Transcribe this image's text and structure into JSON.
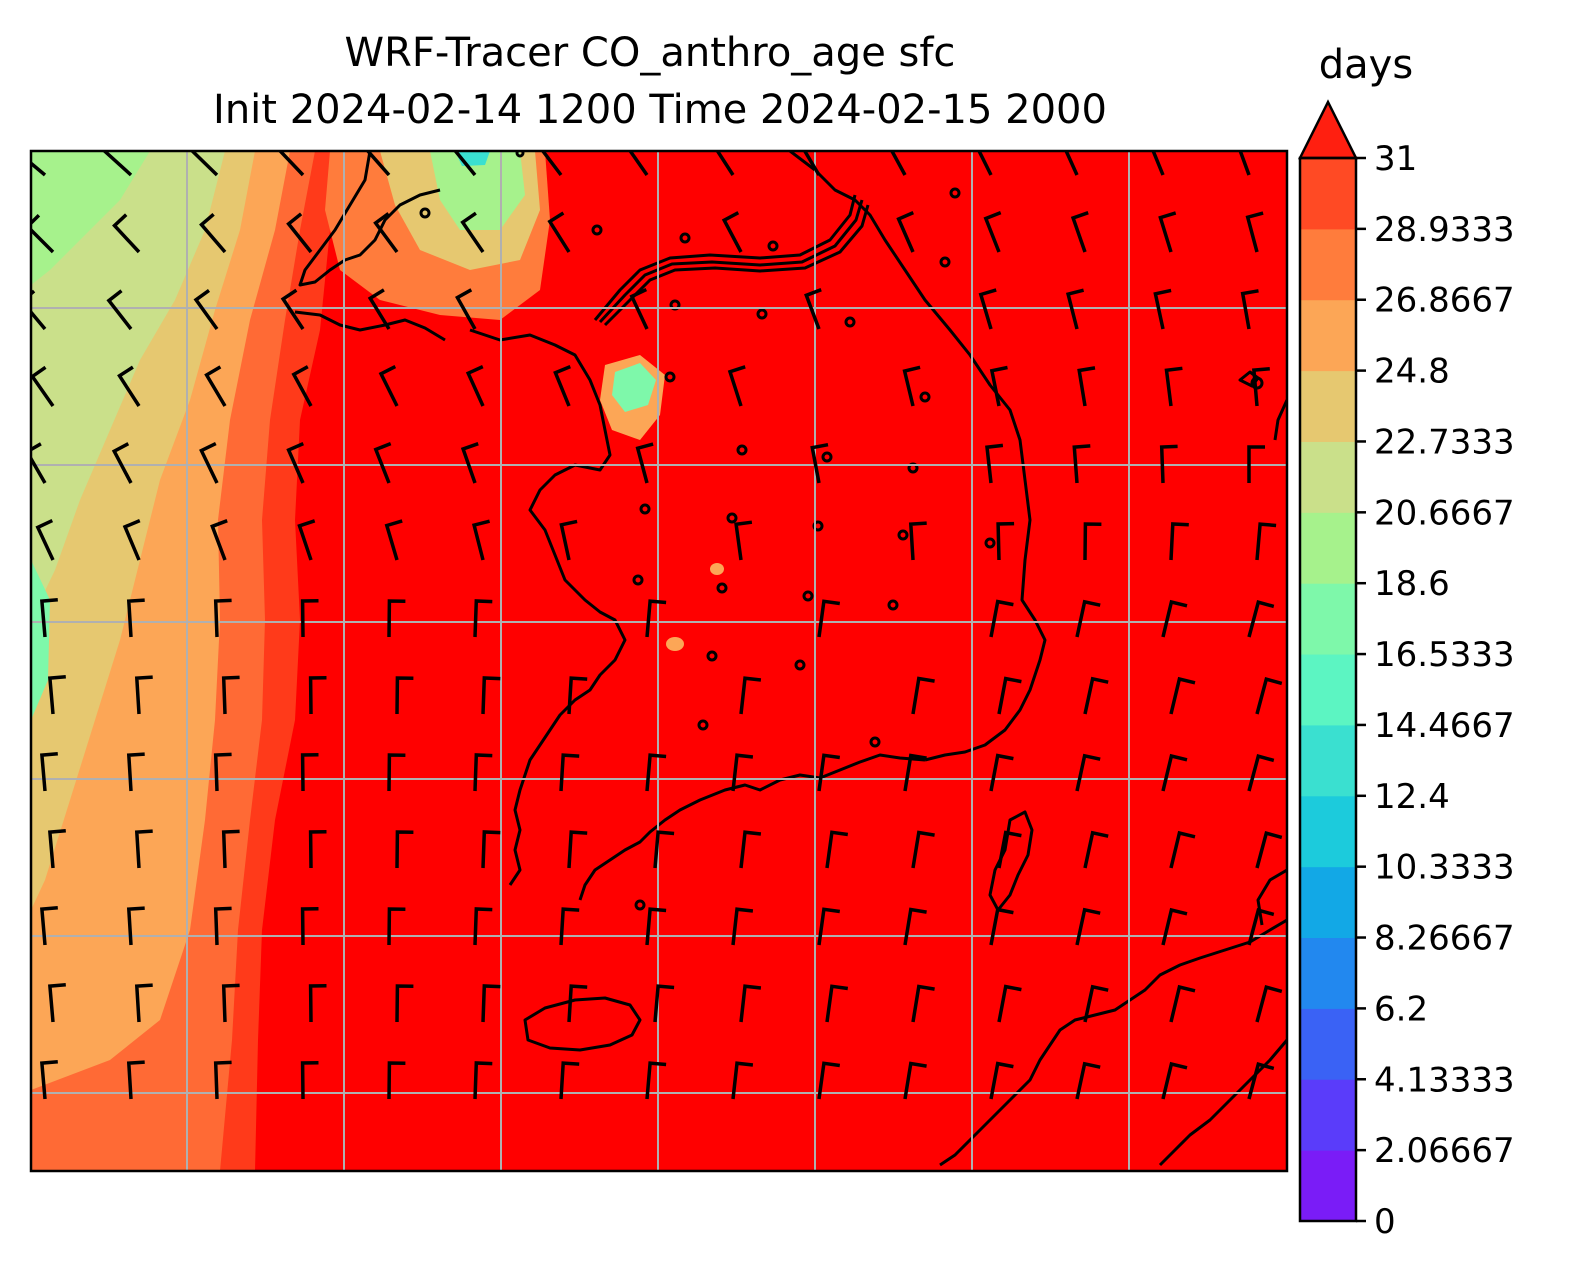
{
  "title": {
    "line1": "WRF-Tracer CO_anthro_age sfc",
    "line2": "Init 2024-02-14 1200 Time 2024-02-15 2000"
  },
  "colorbar": {
    "units": "days",
    "extend": "max",
    "ticks": [
      "0",
      "2.06667",
      "4.13333",
      "6.2",
      "8.26667",
      "10.3333",
      "12.4",
      "14.4667",
      "16.5333",
      "18.6",
      "20.6667",
      "22.7333",
      "24.8",
      "26.8667",
      "28.9333",
      "31"
    ],
    "levels": [
      {
        "from": 0,
        "to": 2.06667,
        "color": "#7a1cf7"
      },
      {
        "from": 2.06667,
        "to": 4.13333,
        "color": "#5a3cfa"
      },
      {
        "from": 4.13333,
        "to": 6.2,
        "color": "#3a62f5"
      },
      {
        "from": 6.2,
        "to": 8.26667,
        "color": "#2288ef"
      },
      {
        "from": 8.26667,
        "to": 10.3333,
        "color": "#12a8e6"
      },
      {
        "from": 10.3333,
        "to": 12.4,
        "color": "#1ccbdc"
      },
      {
        "from": 12.4,
        "to": 14.4667,
        "color": "#3ae0d0"
      },
      {
        "from": 14.4667,
        "to": 16.5333,
        "color": "#5cf5c2"
      },
      {
        "from": 16.5333,
        "to": 18.6,
        "color": "#7ef8aa"
      },
      {
        "from": 18.6,
        "to": 20.6667,
        "color": "#a6f28c"
      },
      {
        "from": 20.6667,
        "to": 22.7333,
        "color": "#cae08a"
      },
      {
        "from": 22.7333,
        "to": 24.8,
        "color": "#e6c870"
      },
      {
        "from": 24.8,
        "to": 26.8667,
        "color": "#fca656"
      },
      {
        "from": 26.8667,
        "to": 28.9333,
        "color": "#ff7c3c"
      },
      {
        "from": 28.9333,
        "to": 31,
        "color": "#ff4a24"
      },
      {
        "from": 31,
        "to": null,
        "color": "#ff1f10"
      }
    ],
    "over_color": "#ff0000"
  },
  "map": {
    "field": "CO_anthro_age",
    "level": "sfc",
    "gridlines": true,
    "coastlines": true,
    "wind_barbs": true,
    "background_color": "#ff0000"
  }
}
